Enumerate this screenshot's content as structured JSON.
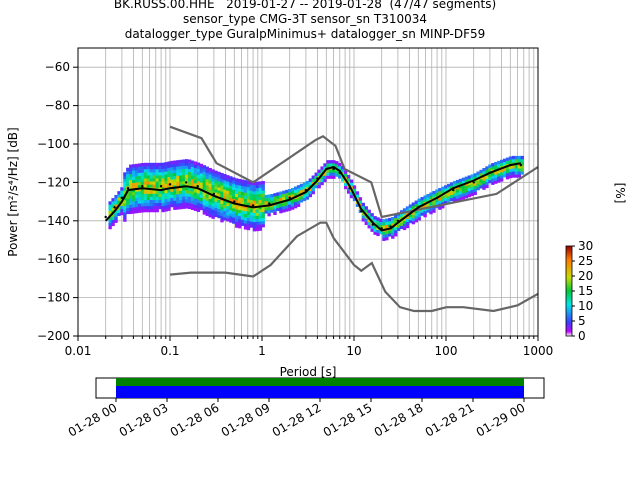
{
  "chart_data": {
    "type": "heatmap",
    "title_lines": [
      "BK.RUSS.00.HHE   2019-01-27 -- 2019-01-28  (47/47 segments)",
      "sensor_type CMG-3T sensor_sn T310034",
      "datalogger_type GuralpMinimus+ datalogger_sn MINP-DF59"
    ],
    "xlabel": "Period [s]",
    "ylabel": "Power [m²/s⁴/Hz] [dB]",
    "xscale": "log",
    "xlim": [
      0.01,
      1000
    ],
    "ylim": [
      -200,
      -50
    ],
    "xticks": [
      0.01,
      0.1,
      1,
      10,
      100,
      1000
    ],
    "xtick_labels": [
      "0.01",
      "0.1",
      "1",
      "10",
      "100",
      "1000"
    ],
    "yticks": [
      -60,
      -80,
      -100,
      -120,
      -140,
      -160,
      -180,
      -200
    ],
    "ytick_labels": [
      "−60",
      "−80",
      "−100",
      "−120",
      "−140",
      "−160",
      "−180",
      "−200"
    ],
    "grid": true,
    "colorbar": {
      "label": "[%]",
      "range": [
        0,
        30
      ],
      "ticks": [
        "0",
        "5",
        "10",
        "15",
        "20",
        "25",
        "30"
      ]
    },
    "series": [
      {
        "role": "mode",
        "points": [
          [
            0.02,
            -138
          ],
          [
            0.025,
            -133
          ],
          [
            0.03,
            -128
          ],
          [
            0.035,
            -123
          ],
          [
            0.05,
            -122
          ],
          [
            0.08,
            -122
          ],
          [
            0.1,
            -121
          ],
          [
            0.15,
            -120
          ],
          [
            0.2,
            -122
          ],
          [
            0.3,
            -126
          ],
          [
            0.5,
            -130
          ],
          [
            0.8,
            -132
          ],
          [
            1.2,
            -131
          ],
          [
            2,
            -128
          ],
          [
            3,
            -124
          ],
          [
            4,
            -118
          ],
          [
            5,
            -113
          ],
          [
            6,
            -113
          ],
          [
            7,
            -115
          ],
          [
            9,
            -123
          ],
          [
            12,
            -135
          ],
          [
            16,
            -142
          ],
          [
            20,
            -144
          ],
          [
            25,
            -143
          ],
          [
            30,
            -140
          ],
          [
            50,
            -133
          ],
          [
            80,
            -128
          ],
          [
            120,
            -124
          ],
          [
            200,
            -120
          ],
          [
            300,
            -115
          ],
          [
            500,
            -111
          ],
          [
            650,
            -111
          ]
        ]
      },
      {
        "role": "mean",
        "points": [
          [
            0.02,
            -140
          ],
          [
            0.025,
            -135
          ],
          [
            0.03,
            -130
          ],
          [
            0.035,
            -124
          ],
          [
            0.05,
            -123
          ],
          [
            0.08,
            -124
          ],
          [
            0.1,
            -123
          ],
          [
            0.15,
            -122
          ],
          [
            0.2,
            -123
          ],
          [
            0.3,
            -127
          ],
          [
            0.5,
            -131
          ],
          [
            0.8,
            -133
          ],
          [
            1.2,
            -132
          ],
          [
            2,
            -129
          ],
          [
            3,
            -125
          ],
          [
            4,
            -119
          ],
          [
            5,
            -113
          ],
          [
            6,
            -112
          ],
          [
            7,
            -114
          ],
          [
            9,
            -122
          ],
          [
            12,
            -134
          ],
          [
            16,
            -141
          ],
          [
            20,
            -145
          ],
          [
            25,
            -144
          ],
          [
            30,
            -141
          ],
          [
            50,
            -133
          ],
          [
            80,
            -128
          ],
          [
            120,
            -123
          ],
          [
            200,
            -119
          ],
          [
            300,
            -115
          ],
          [
            500,
            -111
          ],
          [
            650,
            -110
          ]
        ]
      },
      {
        "role": "NHNM",
        "points": [
          [
            0.1,
            -91
          ],
          [
            0.22,
            -97
          ],
          [
            0.32,
            -110
          ],
          [
            0.8,
            -120
          ],
          [
            3.8,
            -98
          ],
          [
            4.6,
            -96
          ],
          [
            6.3,
            -101
          ],
          [
            7.9,
            -113
          ],
          [
            15.4,
            -120
          ],
          [
            20,
            -138
          ],
          [
            354,
            -126
          ],
          [
            1000,
            -112
          ]
        ]
      },
      {
        "role": "NLNM",
        "points": [
          [
            0.1,
            -168
          ],
          [
            0.17,
            -167
          ],
          [
            0.4,
            -167
          ],
          [
            0.8,
            -169
          ],
          [
            1.24,
            -163
          ],
          [
            2.4,
            -148
          ],
          [
            4.3,
            -141
          ],
          [
            5,
            -141
          ],
          [
            6,
            -149
          ],
          [
            10,
            -163
          ],
          [
            12,
            -166
          ],
          [
            15.6,
            -162
          ],
          [
            21.9,
            -177
          ],
          [
            31.6,
            -185
          ],
          [
            45,
            -187
          ],
          [
            70,
            -187
          ],
          [
            101,
            -185
          ],
          [
            154,
            -185
          ],
          [
            328,
            -187
          ],
          [
            600,
            -184
          ],
          [
            1000,
            -178
          ]
        ]
      }
    ]
  },
  "timeline": {
    "tick_labels": [
      "01-28 00",
      "01-28 03",
      "01-28 06",
      "01-28 09",
      "01-28 12",
      "01-28 15",
      "01-28 18",
      "01-28 21",
      "01-29 00"
    ],
    "bar_colors": [
      "#008000",
      "#0000ff"
    ]
  },
  "colors": {
    "nhnm_nlnm": "#666666",
    "mean": "#000000"
  }
}
